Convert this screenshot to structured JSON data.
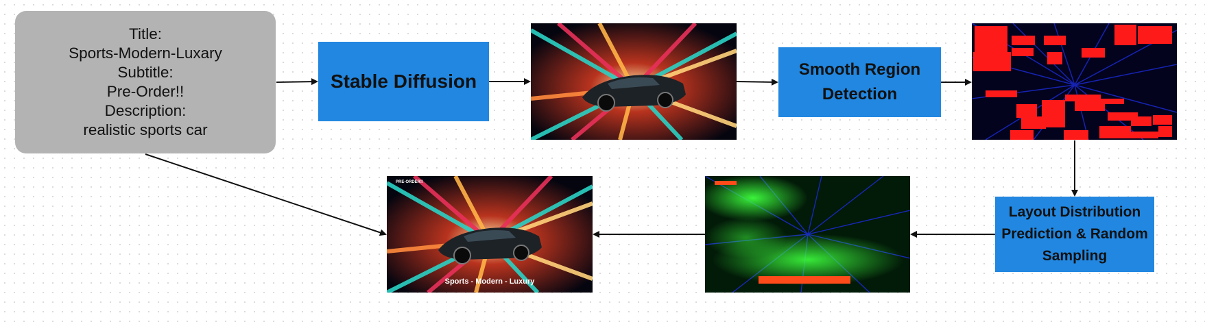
{
  "input_card": {
    "lines": [
      "Title:",
      "Sports-Modern-Luxary",
      "Subtitle:",
      "Pre-Order!!",
      "Description:",
      "realistic sports car"
    ]
  },
  "steps": {
    "stable_diffusion": "Stable Diffusion",
    "smooth_region_line1": "Smooth Region",
    "smooth_region_line2": "Detection",
    "layout_line1": "Layout Distribution",
    "layout_line2": "Prediction & Random",
    "layout_line3": "Sampling"
  },
  "final_poster": {
    "subtitle": "PRE-ORDER!!",
    "title": "Sports - Modern - Luxury"
  },
  "colors": {
    "card_gray": "#b3b3b3",
    "step_blue": "#2287e0",
    "region_red": "#ff1a1a",
    "heat_green": "#22ff22",
    "layout_orange": "#ff4a1a"
  }
}
